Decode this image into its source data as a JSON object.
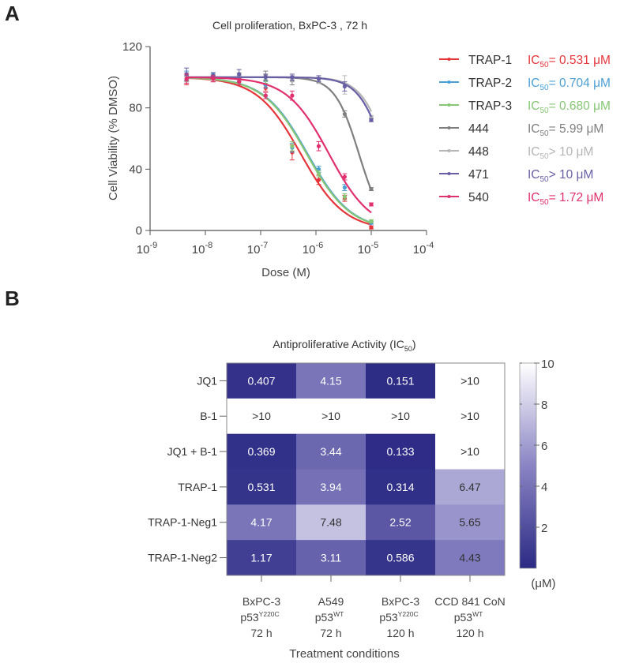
{
  "panel_a_label": "A",
  "panel_b_label": "B",
  "chart_data": [
    {
      "type": "line",
      "title": "Cell proliferation, BxPC-3 , 72 h",
      "xlabel": "Dose (M)",
      "ylabel": "Cell Viability (% DMSO)",
      "xscale": "log",
      "xlim": [
        1e-09,
        0.0001
      ],
      "ylim": [
        0,
        120
      ],
      "yticks": [
        "0",
        "40",
        "80",
        "120"
      ],
      "xticks": [
        {
          "base": "10",
          "exp": "-9"
        },
        {
          "base": "10",
          "exp": "-8"
        },
        {
          "base": "10",
          "exp": "-7"
        },
        {
          "base": "10",
          "exp": "-6"
        },
        {
          "base": "10",
          "exp": "-5"
        },
        {
          "base": "10",
          "exp": "-4"
        }
      ],
      "legend_placement": "right",
      "x_log10": [
        -8.34,
        -7.86,
        -7.39,
        -6.91,
        -6.43,
        -5.95,
        -5.48,
        -5.0
      ],
      "series": [
        {
          "name": "TRAP-1",
          "ic50_prefix": "IC",
          "ic50_sub": "50",
          "ic50_text": "= 0.531 μM",
          "color": "#e5353b",
          "fit_ic50_uM": 0.531,
          "fit_hill": 1.1,
          "values": [
            98,
            99,
            97,
            93,
            51,
            33,
            21,
            2
          ],
          "err": [
            3,
            2,
            2,
            2,
            5,
            3,
            2,
            1
          ]
        },
        {
          "name": "TRAP-2",
          "ic50_prefix": "IC",
          "ic50_sub": "50",
          "ic50_text": "= 0.704 μM",
          "color": "#4b9fd5",
          "fit_ic50_uM": 0.704,
          "fit_hill": 1.1,
          "values": [
            101,
            102,
            99,
            95,
            54,
            40,
            28,
            5
          ],
          "err": [
            3,
            1,
            2,
            2,
            3,
            2,
            2,
            1
          ]
        },
        {
          "name": "TRAP-3",
          "ic50_prefix": "IC",
          "ic50_sub": "50",
          "ic50_text": "= 0.680 μM",
          "color": "#86c675",
          "fit_ic50_uM": 0.68,
          "fit_hill": 1.1,
          "values": [
            100,
            100,
            100,
            98,
            55,
            37,
            22,
            6
          ],
          "err": [
            3,
            2,
            2,
            2,
            3,
            2,
            2,
            1
          ]
        },
        {
          "name": "444",
          "ic50_prefix": "IC",
          "ic50_sub": "50",
          "ic50_text": "= 5.99 μM",
          "color": "#7f7f7f",
          "fit_ic50_uM": 5.99,
          "fit_hill": 2.0,
          "values": [
            100,
            100,
            101,
            101,
            98,
            98,
            76,
            27
          ],
          "err": [
            3,
            2,
            2,
            3,
            3,
            2,
            2,
            1
          ]
        },
        {
          "name": "448",
          "ic50_prefix": "IC",
          "ic50_sub": ">",
          "ic50_text": "> 10 μM",
          "color": "#b5b5b5",
          "fit_ic50_uM": 20,
          "fit_hill": 1.8,
          "values": [
            100,
            100,
            101,
            100,
            99,
            98,
            95,
            74
          ],
          "err": [
            3,
            2,
            2,
            2,
            2,
            2,
            6,
            1
          ]
        },
        {
          "name": "471",
          "ic50_prefix": "IC",
          "ic50_sub": ">",
          "ic50_text": "> 10 μM",
          "color": "#675fa6",
          "fit_ic50_uM": 18,
          "fit_hill": 1.8,
          "values": [
            102,
            101,
            102,
            100,
            100,
            99,
            94,
            72
          ],
          "err": [
            4,
            2,
            3,
            2,
            2,
            2,
            3,
            1
          ]
        },
        {
          "name": "540",
          "ic50_prefix": "IC",
          "ic50_sub": "50",
          "ic50_text": "= 1.72 μM",
          "color": "#e0306e",
          "fit_ic50_uM": 1.72,
          "fit_hill": 1.15,
          "values": [
            99,
            99,
            97,
            88,
            88,
            55,
            35,
            17
          ],
          "err": [
            3,
            2,
            2,
            2,
            3,
            3,
            2,
            1
          ]
        }
      ]
    },
    {
      "type": "heatmap",
      "title_main": "Antiproliferative Activity (IC",
      "title_sub": "50",
      "title_end": ")",
      "xlabel": "Treatment conditions",
      "rows": [
        "JQ1",
        "B-1",
        "JQ1 + B-1",
        "TRAP-1",
        "TRAP-1-Neg1",
        "TRAP-1-Neg2"
      ],
      "columns": [
        {
          "line1": "BxPC-3",
          "base": "p53",
          "sup": "Y220C",
          "line3": "72 h"
        },
        {
          "line1": "A549",
          "base": "p53",
          "sup": "WT",
          "line3": "72 h"
        },
        {
          "line1": "BxPC-3",
          "base": "p53",
          "sup": "Y220C",
          "line3": "120 h"
        },
        {
          "line1": "CCD 841 CoN",
          "base": "p53",
          "sup": "WT",
          "line3": "120 h"
        }
      ],
      "values": [
        [
          0.407,
          4.15,
          0.151,
          10
        ],
        [
          10,
          10,
          10,
          10
        ],
        [
          0.369,
          3.44,
          0.133,
          10
        ],
        [
          0.531,
          3.94,
          0.314,
          6.47
        ],
        [
          4.17,
          7.48,
          2.52,
          5.65
        ],
        [
          1.17,
          3.11,
          0.586,
          4.43
        ]
      ],
      "labels": [
        [
          "0.407",
          "4.15",
          "0.151",
          ">10"
        ],
        [
          ">10",
          ">10",
          ">10",
          ">10"
        ],
        [
          "0.369",
          "3.44",
          "0.133",
          ">10"
        ],
        [
          "0.531",
          "3.94",
          "0.314",
          "6.47"
        ],
        [
          "4.17",
          "7.48",
          "2.52",
          "5.65"
        ],
        [
          "1.17",
          "3.11",
          "0.586",
          "4.43"
        ]
      ],
      "colorbar": {
        "range": [
          0,
          10
        ],
        "ticks": [
          "2",
          "4",
          "6",
          "8",
          "10"
        ],
        "unit": "(μM)",
        "color_low": "#2b2a84",
        "color_mid": "#8a84c4",
        "color_high": "#ffffff"
      }
    }
  ]
}
